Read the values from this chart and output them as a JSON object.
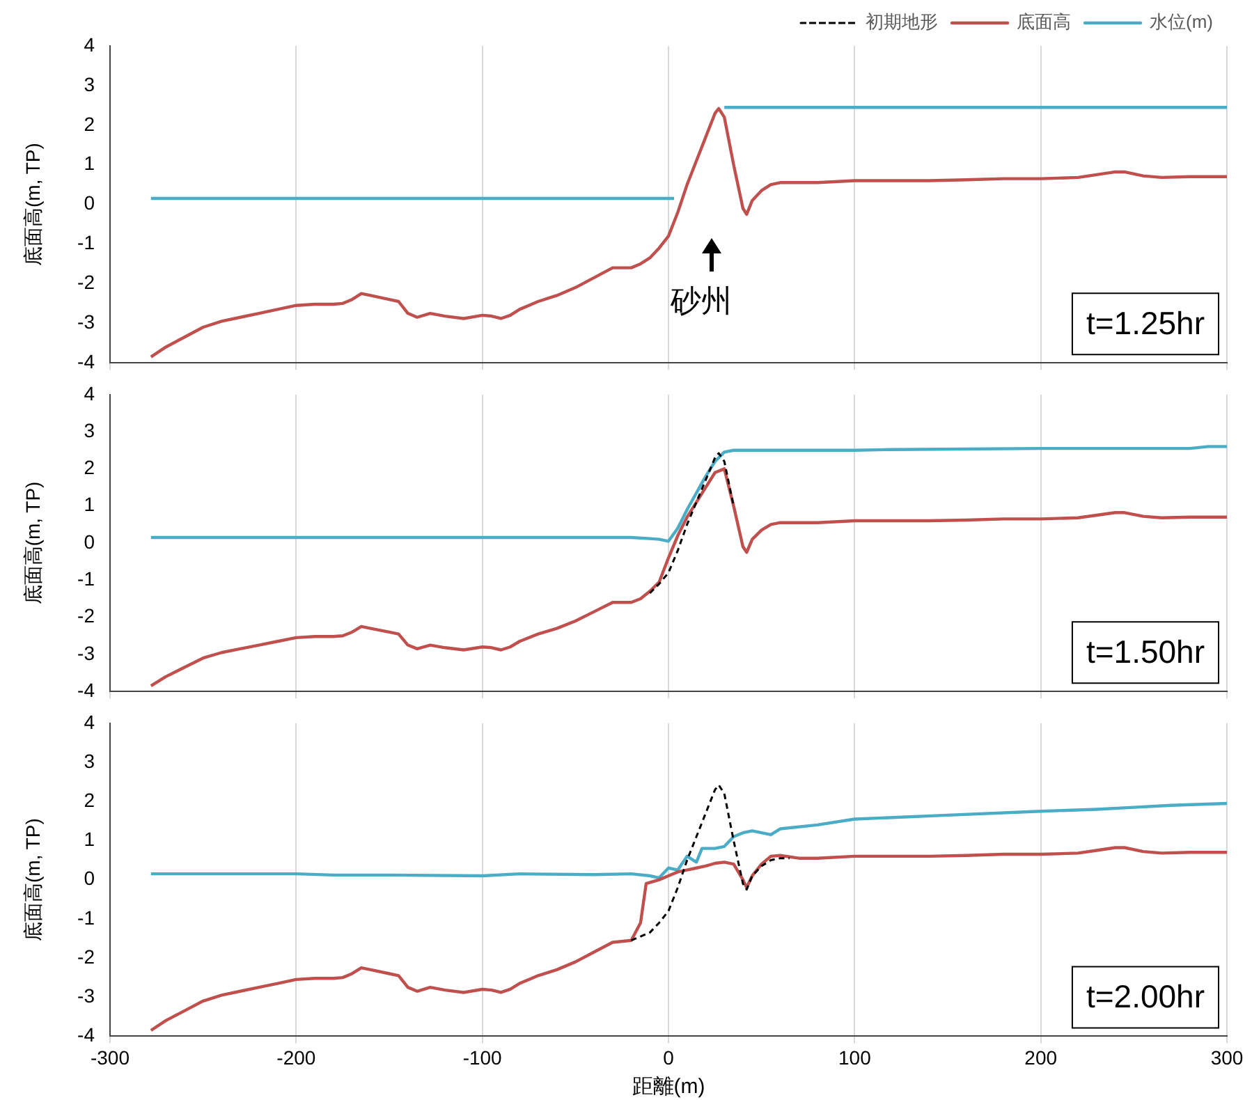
{
  "chart_data": [
    {
      "type": "line",
      "ylabel": "底面高(m, TP)",
      "xlim": [
        -300,
        300
      ],
      "xticks": [
        -300,
        -200,
        -100,
        0,
        100,
        200,
        300
      ],
      "ylim": [
        -4,
        4
      ],
      "yticks": [
        -4,
        -3,
        -2,
        -1,
        0,
        1,
        2,
        3,
        4
      ],
      "grid": "x",
      "legend": "top right",
      "tick_labels": "y",
      "marker": "none",
      "annotations": [
        "t=1.25hr",
        "砂州"
      ],
      "series": [
        {
          "name": "初期地形",
          "color": "#000000",
          "line_style": "dashed"
        },
        {
          "name": "底面高",
          "color": "#c0504d",
          "line_style": "solid",
          "x": [
            -278,
            -270,
            -260,
            -250,
            -240,
            -230,
            -220,
            -210,
            -200,
            -190,
            -180,
            -175,
            -170,
            -165,
            -160,
            -150,
            -145,
            -140,
            -135,
            -128,
            -120,
            -110,
            -100,
            -95,
            -90,
            -85,
            -80,
            -70,
            -60,
            -50,
            -40,
            -30,
            -20,
            -15,
            -10,
            -5,
            0,
            5,
            10,
            15,
            20,
            25,
            27,
            30,
            35,
            40,
            42,
            45,
            50,
            55,
            60,
            80,
            100,
            120,
            140,
            160,
            180,
            200,
            220,
            230,
            240,
            245,
            255,
            265,
            280,
            300
          ],
          "values": [
            -3.85,
            -3.6,
            -3.35,
            -3.1,
            -2.95,
            -2.85,
            -2.75,
            -2.65,
            -2.55,
            -2.52,
            -2.52,
            -2.5,
            -2.4,
            -2.25,
            -2.3,
            -2.4,
            -2.45,
            -2.75,
            -2.85,
            -2.75,
            -2.82,
            -2.88,
            -2.8,
            -2.82,
            -2.88,
            -2.8,
            -2.65,
            -2.45,
            -2.3,
            -2.1,
            -1.85,
            -1.6,
            -1.6,
            -1.5,
            -1.35,
            -1.1,
            -0.8,
            -0.2,
            0.5,
            1.1,
            1.7,
            2.3,
            2.42,
            2.2,
            1.0,
            -0.1,
            -0.25,
            0.1,
            0.35,
            0.5,
            0.55,
            0.55,
            0.6,
            0.6,
            0.6,
            0.62,
            0.65,
            0.65,
            0.68,
            0.75,
            0.82,
            0.82,
            0.72,
            0.68,
            0.7,
            0.7
          ]
        },
        {
          "name": "水位(m)",
          "color": "#4bacc6",
          "line_style": "solid",
          "x": [
            -278,
            3,
            17,
            30,
            300
          ],
          "values": [
            0.15,
            0.15,
            null,
            2.45,
            2.45
          ]
        }
      ]
    },
    {
      "type": "line",
      "ylabel": "底面高(m, TP)",
      "xlim": [
        -300,
        300
      ],
      "xticks": [
        -300,
        -200,
        -100,
        0,
        100,
        200,
        300
      ],
      "ylim": [
        -4,
        4
      ],
      "yticks": [
        -4,
        -3,
        -2,
        -1,
        0,
        1,
        2,
        3,
        4
      ],
      "grid": "x",
      "tick_labels": "y",
      "marker": "none",
      "annotations": [
        "t=1.50hr"
      ],
      "series": [
        {
          "color": "#c0504d",
          "line_style": "solid",
          "x": [
            -278,
            -270,
            -260,
            -250,
            -240,
            -230,
            -220,
            -210,
            -200,
            -190,
            -180,
            -175,
            -170,
            -165,
            -160,
            -150,
            -145,
            -140,
            -135,
            -128,
            -120,
            -110,
            -100,
            -95,
            -90,
            -85,
            -80,
            -70,
            -60,
            -50,
            -40,
            -30,
            -20,
            -15,
            -10,
            -5,
            0,
            5,
            10,
            15,
            20,
            25,
            30,
            35,
            40,
            42,
            45,
            50,
            55,
            60,
            80,
            100,
            120,
            140,
            160,
            180,
            200,
            220,
            230,
            240,
            245,
            255,
            265,
            280,
            300
          ],
          "values": [
            -3.85,
            -3.6,
            -3.35,
            -3.1,
            -2.95,
            -2.85,
            -2.75,
            -2.65,
            -2.55,
            -2.52,
            -2.52,
            -2.5,
            -2.4,
            -2.25,
            -2.3,
            -2.4,
            -2.45,
            -2.75,
            -2.85,
            -2.75,
            -2.82,
            -2.88,
            -2.8,
            -2.82,
            -2.88,
            -2.8,
            -2.65,
            -2.45,
            -2.3,
            -2.1,
            -1.85,
            -1.6,
            -1.6,
            -1.5,
            -1.3,
            -1.05,
            -0.4,
            0.2,
            0.7,
            1.1,
            1.5,
            1.9,
            2.0,
            1.0,
            -0.1,
            -0.25,
            0.1,
            0.35,
            0.5,
            0.55,
            0.55,
            0.6,
            0.6,
            0.6,
            0.62,
            0.65,
            0.65,
            0.68,
            0.75,
            0.82,
            0.82,
            0.72,
            0.68,
            0.7,
            0.7
          ]
        },
        {
          "color": "#000000",
          "line_style": "dashed",
          "x": [
            -10,
            -5,
            0,
            5,
            10,
            15,
            20,
            25,
            27,
            30,
            35
          ],
          "values": [
            -1.35,
            -1.1,
            -0.8,
            -0.2,
            0.5,
            1.1,
            1.7,
            2.3,
            2.42,
            2.2,
            1.0
          ]
        },
        {
          "color": "#4bacc6",
          "line_style": "solid",
          "x": [
            -278,
            -20,
            -10,
            -5,
            0,
            5,
            10,
            15,
            20,
            25,
            30,
            35,
            100,
            120,
            200,
            280,
            290,
            300
          ],
          "values": [
            0.15,
            0.15,
            0.12,
            0.1,
            0.05,
            0.4,
            0.9,
            1.35,
            1.8,
            2.2,
            2.45,
            2.5,
            2.5,
            2.52,
            2.55,
            2.55,
            2.6,
            2.6
          ]
        }
      ]
    },
    {
      "type": "line",
      "xlabel": "距離(m)",
      "ylabel": "底面高(m, TP)",
      "xlim": [
        -300,
        300
      ],
      "xticks": [
        -300,
        -200,
        -100,
        0,
        100,
        200,
        300
      ],
      "ylim": [
        -4,
        4
      ],
      "yticks": [
        -4,
        -3,
        -2,
        -1,
        0,
        1,
        2,
        3,
        4
      ],
      "grid": "x",
      "marker": "none",
      "annotations": [
        "t=2.00hr"
      ],
      "series": [
        {
          "color": "#c0504d",
          "line_style": "solid",
          "x": [
            -278,
            -270,
            -260,
            -250,
            -240,
            -230,
            -220,
            -210,
            -200,
            -190,
            -180,
            -175,
            -170,
            -165,
            -160,
            -150,
            -145,
            -140,
            -135,
            -128,
            -120,
            -110,
            -100,
            -95,
            -90,
            -85,
            -80,
            -70,
            -60,
            -50,
            -40,
            -30,
            -20,
            -15,
            -12,
            -5,
            0,
            5,
            10,
            15,
            20,
            25,
            30,
            35,
            40,
            42,
            45,
            50,
            55,
            60,
            70,
            80,
            100,
            120,
            140,
            160,
            180,
            200,
            220,
            230,
            240,
            245,
            255,
            265,
            280,
            300
          ],
          "values": [
            -3.85,
            -3.6,
            -3.35,
            -3.1,
            -2.95,
            -2.85,
            -2.75,
            -2.65,
            -2.55,
            -2.52,
            -2.52,
            -2.5,
            -2.4,
            -2.25,
            -2.3,
            -2.4,
            -2.45,
            -2.75,
            -2.85,
            -2.75,
            -2.82,
            -2.88,
            -2.8,
            -2.82,
            -2.88,
            -2.8,
            -2.65,
            -2.45,
            -2.3,
            -2.1,
            -1.85,
            -1.6,
            -1.55,
            -1.1,
            -0.1,
            0.0,
            0.1,
            0.2,
            0.25,
            0.3,
            0.35,
            0.42,
            0.45,
            0.4,
            0.0,
            -0.2,
            0.1,
            0.4,
            0.6,
            0.62,
            0.55,
            0.55,
            0.6,
            0.6,
            0.6,
            0.62,
            0.65,
            0.65,
            0.68,
            0.75,
            0.82,
            0.82,
            0.72,
            0.68,
            0.7,
            0.7
          ]
        },
        {
          "color": "#000000",
          "line_style": "dashed",
          "x": [
            -20,
            -10,
            -5,
            0,
            5,
            10,
            15,
            20,
            25,
            27,
            30,
            35,
            40,
            42,
            45,
            50,
            55,
            60,
            65
          ],
          "values": [
            -1.55,
            -1.35,
            -1.1,
            -0.8,
            -0.2,
            0.5,
            1.1,
            1.7,
            2.3,
            2.42,
            2.2,
            1.0,
            -0.1,
            -0.25,
            0.1,
            0.35,
            0.5,
            0.55,
            0.55
          ]
        },
        {
          "color": "#4bacc6",
          "line_style": "solid",
          "x": [
            -278,
            -200,
            -180,
            -150,
            -100,
            -80,
            -40,
            -20,
            -10,
            -5,
            0,
            5,
            10,
            15,
            18,
            25,
            30,
            35,
            40,
            45,
            50,
            55,
            60,
            80,
            100,
            150,
            200,
            230,
            250,
            270,
            300
          ],
          "values": [
            0.15,
            0.15,
            0.12,
            0.12,
            0.1,
            0.15,
            0.13,
            0.15,
            0.1,
            0.05,
            0.3,
            0.25,
            0.6,
            0.45,
            0.8,
            0.8,
            0.85,
            1.1,
            1.2,
            1.25,
            1.2,
            1.15,
            1.3,
            1.4,
            1.55,
            1.65,
            1.75,
            1.8,
            1.85,
            1.9,
            1.95
          ]
        }
      ]
    }
  ]
}
